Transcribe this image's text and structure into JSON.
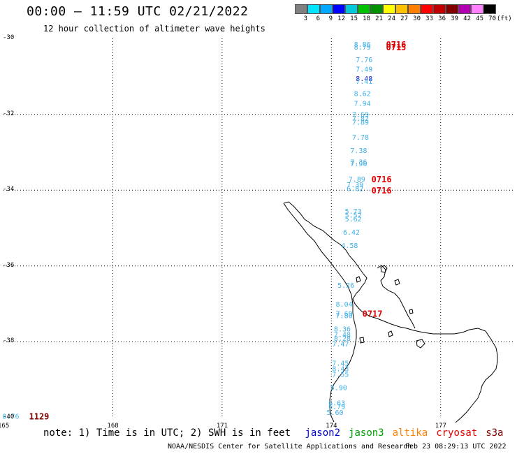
{
  "header": {
    "title": "00:00 – 11:59 UTC 02/21/2022",
    "subtitle": "12 hour collection of altimeter wave heights"
  },
  "colorbar": {
    "colors": [
      "#808080",
      "#00e5ff",
      "#00a8ff",
      "#0000ff",
      "#00c8d8",
      "#00c000",
      "#009000",
      "#ffff00",
      "#ffc000",
      "#ff8000",
      "#ff0000",
      "#c00000",
      "#800000",
      "#b000b0",
      "#ff80ff",
      "#000000"
    ],
    "labels": [
      "3",
      "6",
      "9",
      "12",
      "15",
      "18",
      "21",
      "24",
      "27",
      "30",
      "33",
      "36",
      "39",
      "42",
      "45",
      "70"
    ],
    "unit": "(ft)"
  },
  "axes": {
    "y_labels": [
      "-30",
      "-32",
      "-34",
      "-36",
      "-38",
      "-40"
    ],
    "x_labels": [
      "165",
      "168",
      "171",
      "174",
      "177"
    ]
  },
  "chart_data": {
    "type": "scatter",
    "xlim": [
      165,
      179
    ],
    "ylim": [
      -40,
      -30
    ],
    "points": [
      {
        "lon": 174.85,
        "lat": -30.15,
        "v": "8.86",
        "c": "#3fb0e8"
      },
      {
        "lon": 174.85,
        "lat": -30.22,
        "v": "8.79",
        "c": "#3fb0e8"
      },
      {
        "lon": 174.9,
        "lat": -30.55,
        "v": "7.76",
        "c": "#3fb0e8"
      },
      {
        "lon": 174.9,
        "lat": -30.8,
        "v": "7.49",
        "c": "#3fb0e8"
      },
      {
        "lon": 174.9,
        "lat": -31.05,
        "v": "8.48",
        "c": "#1a1ad0"
      },
      {
        "lon": 174.9,
        "lat": -31.12,
        "v": "7.41",
        "c": "#3fb0e8"
      },
      {
        "lon": 174.85,
        "lat": -31.45,
        "v": "8.62",
        "c": "#3fb0e8"
      },
      {
        "lon": 174.85,
        "lat": -31.7,
        "v": "7.94",
        "c": "#3fb0e8"
      },
      {
        "lon": 174.8,
        "lat": -32.0,
        "v": "7.69",
        "c": "#3fb0e8"
      },
      {
        "lon": 174.8,
        "lat": -32.1,
        "v": "7.82",
        "c": "#3fb0e8"
      },
      {
        "lon": 174.8,
        "lat": -32.2,
        "v": "7.89",
        "c": "#3fb0e8"
      },
      {
        "lon": 174.8,
        "lat": -32.6,
        "v": "7.78",
        "c": "#3fb0e8"
      },
      {
        "lon": 174.75,
        "lat": -32.95,
        "v": "7.38",
        "c": "#3fb0e8"
      },
      {
        "lon": 174.75,
        "lat": -33.25,
        "v": "7.36",
        "c": "#3fb0e8"
      },
      {
        "lon": 174.75,
        "lat": -33.3,
        "v": "7.90",
        "c": "#3fb0e8"
      },
      {
        "lon": 174.7,
        "lat": -33.7,
        "v": "7.89",
        "c": "#3fb0e8"
      },
      {
        "lon": 174.65,
        "lat": -33.85,
        "v": "7.39",
        "c": "#3fb0e8"
      },
      {
        "lon": 174.65,
        "lat": -33.95,
        "v": "6.82",
        "c": "#3fb0e8"
      },
      {
        "lon": 174.6,
        "lat": -34.55,
        "v": "5.73",
        "c": "#3fb0e8"
      },
      {
        "lon": 174.6,
        "lat": -34.65,
        "v": "5.52",
        "c": "#3fb0e8"
      },
      {
        "lon": 174.6,
        "lat": -34.75,
        "v": "5.62",
        "c": "#3fb0e8"
      },
      {
        "lon": 174.55,
        "lat": -35.1,
        "v": "6.42",
        "c": "#3fb0e8"
      },
      {
        "lon": 174.5,
        "lat": -35.45,
        "v": "4.58",
        "c": "#3fb0e8"
      },
      {
        "lon": 174.4,
        "lat": -36.5,
        "v": "5.26",
        "c": "#3fb0e8"
      },
      {
        "lon": 174.35,
        "lat": -37.0,
        "v": "8.04",
        "c": "#3fb0e8"
      },
      {
        "lon": 174.35,
        "lat": -37.25,
        "v": "7.69",
        "c": "#3fb0e8"
      },
      {
        "lon": 174.35,
        "lat": -37.3,
        "v": "7.80",
        "c": "#3fb0e8"
      },
      {
        "lon": 174.3,
        "lat": -37.65,
        "v": "8.36",
        "c": "#3fb0e8"
      },
      {
        "lon": 174.3,
        "lat": -37.8,
        "v": "7.48",
        "c": "#3fb0e8"
      },
      {
        "lon": 174.3,
        "lat": -37.9,
        "v": "8.28",
        "c": "#3fb0e8"
      },
      {
        "lon": 174.25,
        "lat": -38.05,
        "v": "7.47",
        "c": "#3fb0e8"
      },
      {
        "lon": 174.25,
        "lat": -38.55,
        "v": "7.45",
        "c": "#3fb0e8"
      },
      {
        "lon": 174.25,
        "lat": -38.7,
        "v": "8.43",
        "c": "#3fb0e8"
      },
      {
        "lon": 174.25,
        "lat": -38.85,
        "v": "7.55",
        "c": "#3fb0e8"
      },
      {
        "lon": 174.2,
        "lat": -39.2,
        "v": "5.90",
        "c": "#3fb0e8"
      },
      {
        "lon": 174.15,
        "lat": -39.6,
        "v": "6.63",
        "c": "#3fb0e8"
      },
      {
        "lon": 174.15,
        "lat": -39.7,
        "v": "6.79",
        "c": "#3fb0e8"
      },
      {
        "lon": 174.1,
        "lat": -39.85,
        "v": "5.60",
        "c": "#3fb0e8"
      },
      {
        "lon": 165.2,
        "lat": -39.95,
        "v": "8.76",
        "c": "#3fb0e8"
      }
    ],
    "time_labels": [
      {
        "lon": 175.5,
        "lat": -30.15,
        "t": "0716",
        "c": "#e00000"
      },
      {
        "lon": 175.5,
        "lat": -30.22,
        "t": "0715",
        "c": "#e00000"
      },
      {
        "lon": 175.1,
        "lat": -33.7,
        "t": "0716",
        "c": "#e00000"
      },
      {
        "lon": 175.1,
        "lat": -34.0,
        "t": "0716",
        "c": "#e00000"
      },
      {
        "lon": 174.85,
        "lat": -37.25,
        "t": "0717",
        "c": "#e00000"
      },
      {
        "lon": 165.7,
        "lat": -39.95,
        "t": "1129",
        "c": "#800000"
      }
    ]
  },
  "legend": {
    "note": "note: 1) Time is in UTC; 2) SWH is in feet",
    "satellites": [
      {
        "name": "jason2",
        "color": "#0000cc"
      },
      {
        "name": "jason3",
        "color": "#00a000"
      },
      {
        "name": "altika",
        "color": "#ff8000"
      },
      {
        "name": "cryosat",
        "color": "#e00000"
      },
      {
        "name": "s3a",
        "color": "#800000"
      }
    ]
  },
  "footer": {
    "credit": "NOAA/NESDIS Center for Satellite Applications and Research",
    "timestamp": "Feb 23 08:29:13 UTC 2022"
  }
}
